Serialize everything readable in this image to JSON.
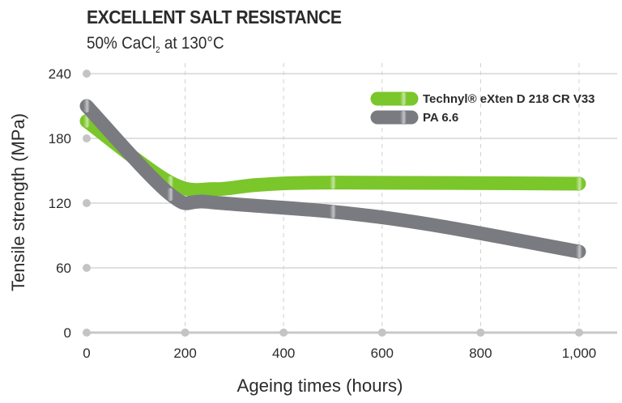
{
  "chart_data": {
    "type": "line",
    "title": "EXCELLENT SALT RESISTANCE",
    "subtitle_main": "50% CaCl",
    "subtitle_sub": "2",
    "subtitle_rest": " at 130°C",
    "xlabel": "Ageing times (hours)",
    "ylabel": "Tensile strength (MPa)",
    "xlim": [
      0,
      1000
    ],
    "ylim": [
      0,
      240
    ],
    "xticks": [
      0,
      200,
      400,
      600,
      800,
      1000
    ],
    "xtick_labels": [
      "0",
      "200",
      "400",
      "600",
      "800",
      "1,000"
    ],
    "yticks": [
      0,
      60,
      120,
      180,
      240
    ],
    "ytick_labels": [
      "0",
      "60",
      "120",
      "180",
      "240"
    ],
    "grid": true,
    "legend_position": "top-right",
    "series": [
      {
        "name": "Technyl® eXten D 218 CR V33",
        "color": "#7bc62b",
        "x": [
          0,
          170,
          260,
          350,
          500,
          1000
        ],
        "y": [
          196,
          139,
          133,
          137,
          139,
          138
        ],
        "measured": [
          true,
          true,
          false,
          false,
          true,
          true
        ]
      },
      {
        "name": "PA 6.6",
        "color": "#7a7b80",
        "x": [
          0,
          170,
          250,
          500,
          700,
          1000
        ],
        "y": [
          210,
          128,
          121,
          112,
          100,
          75
        ],
        "measured": [
          true,
          true,
          false,
          true,
          false,
          true
        ]
      }
    ]
  }
}
